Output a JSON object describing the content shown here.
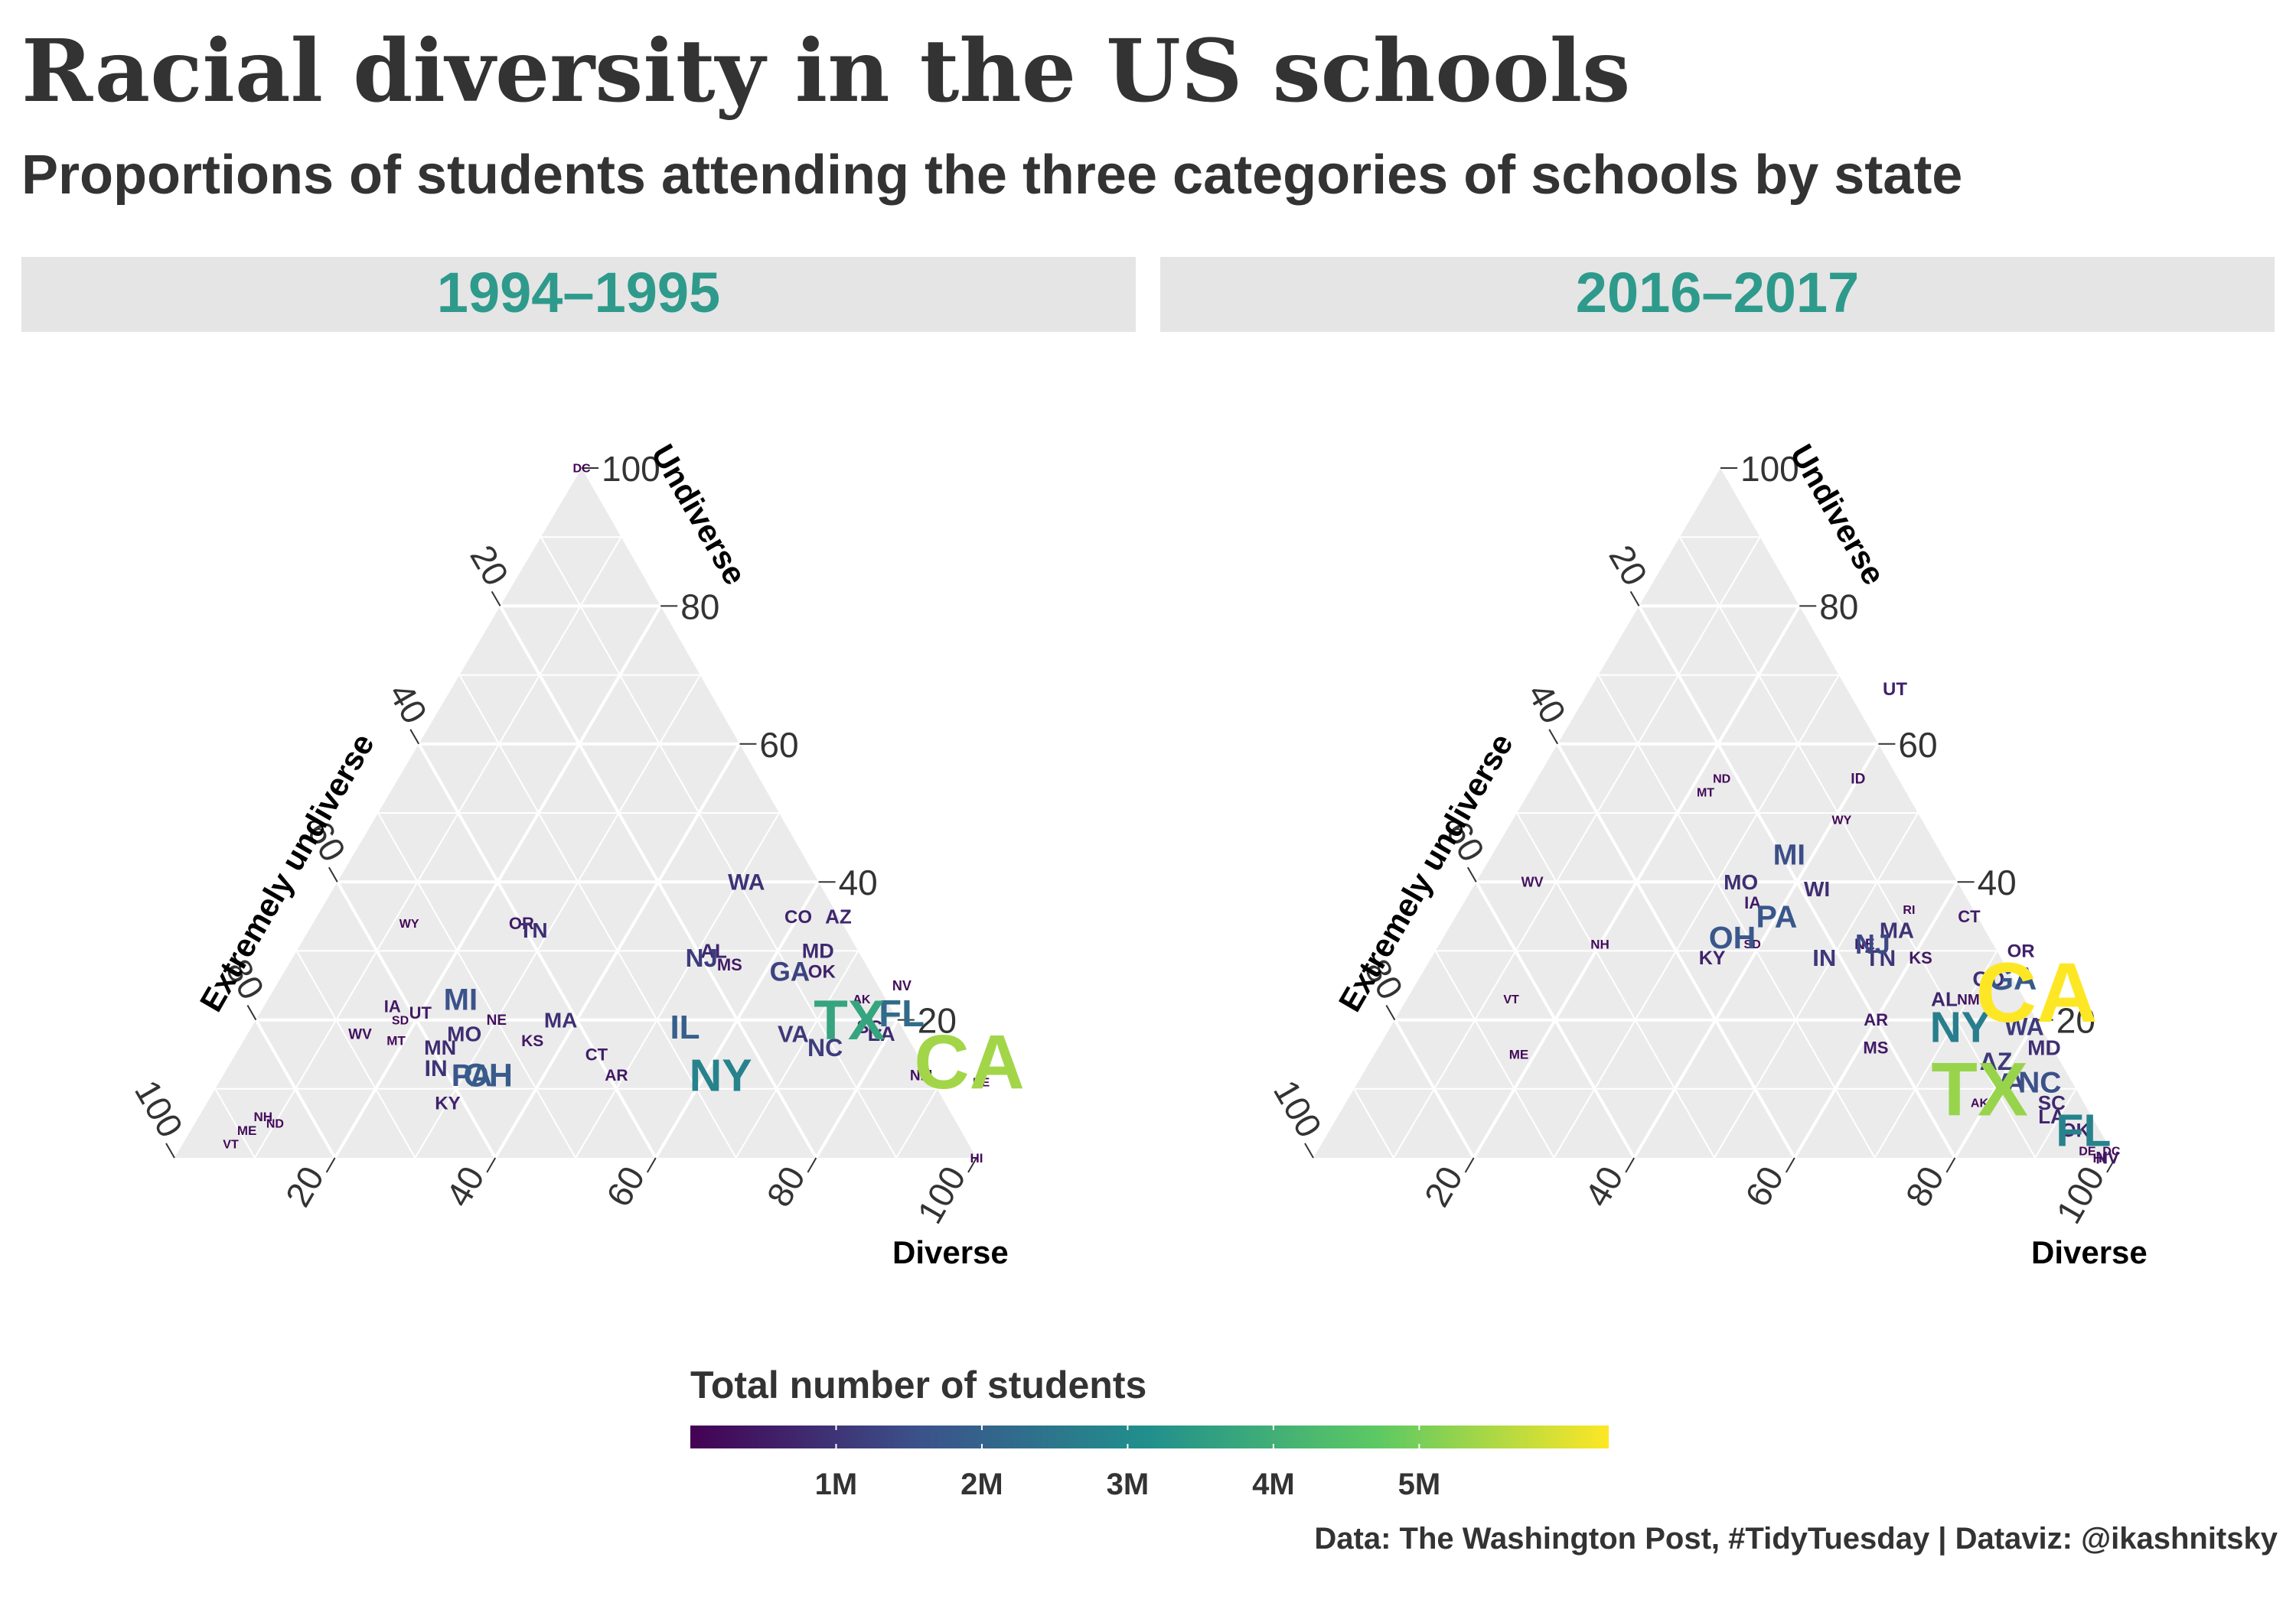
{
  "title": "Racial diversity in the US schools",
  "subtitle": "Proportions of students attending the three categories of schools by state",
  "caption": "Data: The Washington Post, #TidyTuesday | Dataviz: @ikashnitsky",
  "legend": {
    "title": "Total number of students",
    "ticks": [
      "1M",
      "2M",
      "3M",
      "4M",
      "5M"
    ],
    "tick_values": [
      1000000,
      2000000,
      3000000,
      4000000,
      5000000
    ],
    "domain": [
      0,
      6300000
    ],
    "colors": [
      "#440154",
      "#3b528b",
      "#21908c",
      "#5dc963",
      "#fde725"
    ]
  },
  "colors": {
    "panel": "#ebebeb",
    "strip": "#e5e5e5",
    "strip_text": "#2e9a8c",
    "text": "#333333"
  },
  "chart_data": [
    {
      "type": "scatter",
      "panel": "1994–1995",
      "axes": {
        "top": "Undiverse",
        "left": "Extremely undiverse",
        "right": "Diverse"
      },
      "tick_labels": [
        "20",
        "40",
        "60",
        "80",
        "100"
      ],
      "range": [
        0,
        100
      ],
      "grid": true,
      "points": [
        {
          "label": "DC",
          "diverse": 0,
          "undiverse": 100,
          "students": 80000
        },
        {
          "label": "HI",
          "diverse": 100,
          "undiverse": 0,
          "students": 190000
        },
        {
          "label": "WA",
          "diverse": 51,
          "undiverse": 40,
          "students": 980000
        },
        {
          "label": "CO",
          "diverse": 60,
          "undiverse": 35,
          "students": 640000
        },
        {
          "label": "AZ",
          "diverse": 65,
          "undiverse": 35,
          "students": 740000
        },
        {
          "label": "MD",
          "diverse": 65,
          "undiverse": 30,
          "students": 790000
        },
        {
          "label": "OK",
          "diverse": 67,
          "undiverse": 27,
          "students": 600000
        },
        {
          "label": "WY",
          "diverse": 12,
          "undiverse": 34,
          "students": 100000
        },
        {
          "label": "OR",
          "diverse": 26,
          "undiverse": 34,
          "students": 520000
        },
        {
          "label": "TN",
          "diverse": 28,
          "undiverse": 33,
          "students": 880000
        },
        {
          "label": "NV",
          "diverse": 78,
          "undiverse": 25,
          "students": 260000
        },
        {
          "label": "AL",
          "diverse": 52,
          "undiverse": 30,
          "students": 740000
        },
        {
          "label": "NJ",
          "diverse": 51,
          "undiverse": 29,
          "students": 1170000
        },
        {
          "label": "MS",
          "diverse": 55,
          "undiverse": 28,
          "students": 500000
        },
        {
          "label": "GA",
          "diverse": 63,
          "undiverse": 27,
          "students": 1290000
        },
        {
          "label": "LA",
          "diverse": 79,
          "undiverse": 18,
          "students": 790000
        },
        {
          "label": "FL",
          "diverse": 80,
          "undiverse": 21,
          "students": 2200000
        },
        {
          "label": "TX",
          "diverse": 74,
          "undiverse": 20,
          "students": 3700000
        },
        {
          "label": "AK",
          "diverse": 74,
          "undiverse": 23,
          "students": 130000
        },
        {
          "label": "SC",
          "diverse": 77,
          "undiverse": 19,
          "students": 640000
        },
        {
          "label": "VA",
          "diverse": 68,
          "undiverse": 18,
          "students": 1060000
        },
        {
          "label": "NC",
          "diverse": 73,
          "undiverse": 16,
          "students": 1150000
        },
        {
          "label": "CA",
          "diverse": 92,
          "undiverse": 14,
          "students": 5400000
        },
        {
          "label": "NM",
          "diverse": 87,
          "undiverse": 12,
          "students": 330000
        },
        {
          "label": "DE",
          "diverse": 95,
          "undiverse": 11,
          "students": 100000
        },
        {
          "label": "IL",
          "diverse": 54,
          "undiverse": 19,
          "students": 1900000
        },
        {
          "label": "NY",
          "diverse": 62,
          "undiverse": 12,
          "students": 2800000
        },
        {
          "label": "MI",
          "diverse": 24,
          "undiverse": 23,
          "students": 1600000
        },
        {
          "label": "UT",
          "diverse": 20,
          "undiverse": 21,
          "students": 470000
        },
        {
          "label": "MO",
          "diverse": 27,
          "undiverse": 18,
          "students": 880000
        },
        {
          "label": "NE",
          "diverse": 30,
          "undiverse": 20,
          "students": 290000
        },
        {
          "label": "MA",
          "diverse": 38,
          "undiverse": 20,
          "students": 890000
        },
        {
          "label": "KS",
          "diverse": 36,
          "undiverse": 17,
          "students": 460000
        },
        {
          "label": "CT",
          "diverse": 45,
          "undiverse": 15,
          "students": 520000
        },
        {
          "label": "AR",
          "diverse": 49,
          "undiverse": 12,
          "students": 450000
        },
        {
          "label": "IA",
          "diverse": 16,
          "undiverse": 22,
          "students": 500000
        },
        {
          "label": "SD",
          "diverse": 18,
          "undiverse": 20,
          "students": 140000
        },
        {
          "label": "WV",
          "diverse": 14,
          "undiverse": 18,
          "students": 310000
        },
        {
          "label": "MT",
          "diverse": 19,
          "undiverse": 17,
          "students": 160000
        },
        {
          "label": "MN",
          "diverse": 25,
          "undiverse": 16,
          "students": 820000
        },
        {
          "label": "IN",
          "diverse": 26,
          "undiverse": 13,
          "students": 970000
        },
        {
          "label": "PA",
          "diverse": 31,
          "undiverse": 12,
          "students": 1700000
        },
        {
          "label": "OH",
          "diverse": 33,
          "undiverse": 12,
          "students": 1800000
        },
        {
          "label": "KY",
          "diverse": 30,
          "undiverse": 8,
          "students": 650000
        },
        {
          "label": "NH",
          "diverse": 8,
          "undiverse": 6,
          "students": 190000
        },
        {
          "label": "ND",
          "diverse": 10,
          "undiverse": 5,
          "students": 120000
        },
        {
          "label": "ME",
          "diverse": 7,
          "undiverse": 4,
          "students": 210000
        },
        {
          "label": "VT",
          "diverse": 6,
          "undiverse": 2,
          "students": 100000
        }
      ]
    },
    {
      "type": "scatter",
      "panel": "2016–2017",
      "axes": {
        "top": "Undiverse",
        "left": "Extremely undiverse",
        "right": "Diverse"
      },
      "tick_labels": [
        "20",
        "40",
        "60",
        "80",
        "100"
      ],
      "range": [
        0,
        100
      ],
      "grid": true,
      "points": [
        {
          "label": "UT",
          "diverse": 38,
          "undiverse": 68,
          "students": 650000
        },
        {
          "label": "ND",
          "diverse": 23,
          "undiverse": 55,
          "students": 110000
        },
        {
          "label": "MT",
          "diverse": 22,
          "undiverse": 53,
          "students": 145000
        },
        {
          "label": "ID",
          "diverse": 40,
          "undiverse": 55,
          "students": 300000
        },
        {
          "label": "WY",
          "diverse": 41,
          "undiverse": 49,
          "students": 95000
        },
        {
          "label": "WV",
          "diverse": 7,
          "undiverse": 40,
          "students": 270000
        },
        {
          "label": "MI",
          "diverse": 37,
          "undiverse": 44,
          "students": 1500000
        },
        {
          "label": "MO",
          "diverse": 33,
          "undiverse": 40,
          "students": 900000
        },
        {
          "label": "WI",
          "diverse": 43,
          "undiverse": 39,
          "students": 850000
        },
        {
          "label": "IA",
          "diverse": 36,
          "undiverse": 37,
          "students": 500000
        },
        {
          "label": "PA",
          "diverse": 40,
          "undiverse": 35,
          "students": 1700000
        },
        {
          "label": "OH",
          "diverse": 36,
          "undiverse": 32,
          "students": 1700000
        },
        {
          "label": "SD",
          "diverse": 39,
          "undiverse": 31,
          "students": 135000
        },
        {
          "label": "KY",
          "diverse": 35,
          "undiverse": 29,
          "students": 680000
        },
        {
          "label": "NH",
          "diverse": 20,
          "undiverse": 31,
          "students": 180000
        },
        {
          "label": "VT",
          "diverse": 13,
          "undiverse": 23,
          "students": 85000
        },
        {
          "label": "ME",
          "diverse": 18,
          "undiverse": 15,
          "students": 180000
        },
        {
          "label": "RI",
          "diverse": 56,
          "undiverse": 36,
          "students": 140000
        },
        {
          "label": "MA",
          "diverse": 56,
          "undiverse": 33,
          "students": 950000
        },
        {
          "label": "CT",
          "diverse": 64,
          "undiverse": 35,
          "students": 530000
        },
        {
          "label": "NE",
          "diverse": 53,
          "undiverse": 31,
          "students": 320000
        },
        {
          "label": "NJ",
          "diverse": 54,
          "undiverse": 31,
          "students": 1400000
        },
        {
          "label": "IN",
          "diverse": 49,
          "undiverse": 29,
          "students": 1050000
        },
        {
          "label": "TN",
          "diverse": 56,
          "undiverse": 29,
          "students": 1000000
        },
        {
          "label": "KS",
          "diverse": 61,
          "undiverse": 29,
          "students": 490000
        },
        {
          "label": "OR",
          "diverse": 73,
          "undiverse": 30,
          "students": 600000
        },
        {
          "label": "CO",
          "diverse": 71,
          "undiverse": 26,
          "students": 900000
        },
        {
          "label": "GA",
          "diverse": 74,
          "undiverse": 26,
          "students": 1750000
        },
        {
          "label": "AL",
          "diverse": 67,
          "undiverse": 23,
          "students": 740000
        },
        {
          "label": "NM",
          "diverse": 70,
          "undiverse": 23,
          "students": 330000
        },
        {
          "label": "AR",
          "diverse": 60,
          "undiverse": 20,
          "students": 490000
        },
        {
          "label": "MS",
          "diverse": 62,
          "undiverse": 16,
          "students": 480000
        },
        {
          "label": "NY",
          "diverse": 71,
          "undiverse": 19,
          "students": 2700000
        },
        {
          "label": "CA",
          "diverse": 78,
          "undiverse": 24,
          "students": 6300000
        },
        {
          "label": "WA",
          "diverse": 79,
          "undiverse": 19,
          "students": 1100000
        },
        {
          "label": "AZ",
          "diverse": 78,
          "undiverse": 14,
          "students": 1100000
        },
        {
          "label": "MD",
          "diverse": 83,
          "undiverse": 16,
          "students": 880000
        },
        {
          "label": "VA",
          "diverse": 81,
          "undiverse": 11,
          "students": 1280000
        },
        {
          "label": "NC",
          "diverse": 85,
          "undiverse": 11,
          "students": 1550000
        },
        {
          "label": "TX",
          "diverse": 78,
          "undiverse": 10,
          "students": 5300000
        },
        {
          "label": "AK",
          "diverse": 79,
          "undiverse": 8,
          "students": 130000
        },
        {
          "label": "SC",
          "diverse": 88,
          "undiverse": 8,
          "students": 770000
        },
        {
          "label": "LA",
          "diverse": 89,
          "undiverse": 6,
          "students": 720000
        },
        {
          "label": "OK",
          "diverse": 93,
          "undiverse": 4,
          "students": 690000
        },
        {
          "label": "FL",
          "diverse": 94,
          "undiverse": 4,
          "students": 2800000
        },
        {
          "label": "DE",
          "diverse": 96,
          "undiverse": 1,
          "students": 135000
        },
        {
          "label": "HI",
          "diverse": 98,
          "undiverse": 0,
          "students": 180000
        },
        {
          "label": "NV",
          "diverse": 99,
          "undiverse": 0,
          "students": 470000
        },
        {
          "label": "DC",
          "diverse": 99,
          "undiverse": 1,
          "students": 85000
        }
      ]
    }
  ]
}
